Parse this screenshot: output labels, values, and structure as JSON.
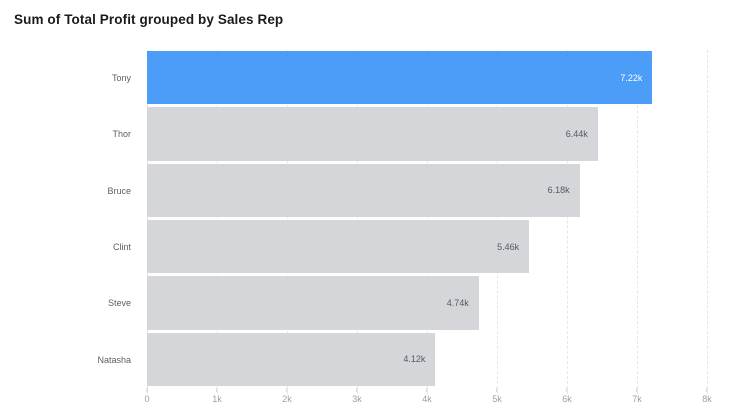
{
  "title": "Sum of Total Profit grouped by Sales Rep",
  "chart_data": {
    "type": "bar",
    "orientation": "horizontal",
    "title": "Sum of Total Profit grouped by Sales Rep",
    "categories": [
      "Tony",
      "Thor",
      "Bruce",
      "Clint",
      "Steve",
      "Natasha"
    ],
    "values": [
      7220,
      6440,
      6180,
      5460,
      4740,
      4120
    ],
    "value_labels": [
      "7.22k",
      "6.44k",
      "6.18k",
      "5.46k",
      "4.74k",
      "4.12k"
    ],
    "x_tick_labels": [
      "0",
      "1k",
      "2k",
      "3k",
      "4k",
      "5k",
      "6k",
      "7k",
      "8k"
    ],
    "xlim": [
      0,
      8000
    ],
    "xlabel": "",
    "ylabel": "",
    "grid": "vertical-dashed",
    "legend": "none",
    "highlight_index": 0,
    "colors": {
      "highlight_bar": "#4B9DF8",
      "bar": "#D5D6DA",
      "value_label": "#55585E",
      "value_label_on_highlight": "#FFFFFF",
      "category_label": "#5C5F66",
      "axis_tick_label": "#9AA0A9",
      "gridline": "#E6E7EB",
      "axis_line": "#E3E4E8",
      "title": "#1A1B1E",
      "background": "#FFFFFF"
    }
  }
}
